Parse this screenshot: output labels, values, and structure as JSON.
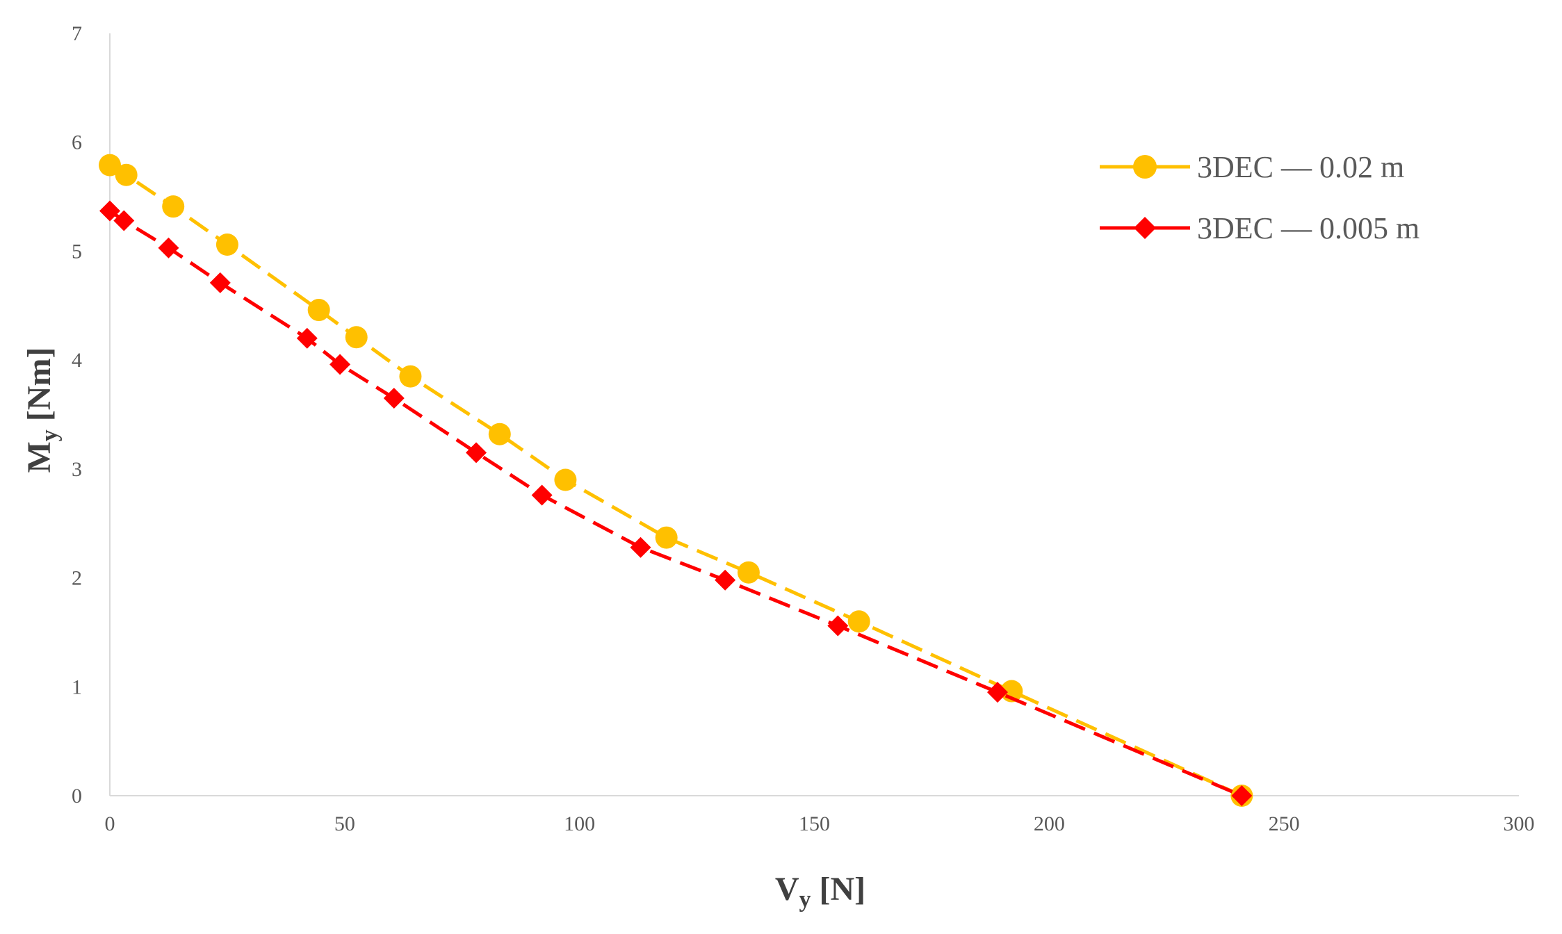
{
  "chart_data": {
    "type": "scatter",
    "xlabel": {
      "main": "V",
      "sub": "y",
      "unit": " [N]"
    },
    "ylabel": {
      "main": "M",
      "sub": "y",
      "unit": " [Nm]"
    },
    "xlim": [
      0,
      300
    ],
    "ylim": [
      0,
      7
    ],
    "x_ticks": [
      0,
      50,
      100,
      150,
      200,
      250,
      300
    ],
    "y_ticks": [
      0,
      1,
      2,
      3,
      4,
      5,
      6,
      7
    ],
    "grid": false,
    "legend_position": "top-right",
    "series": [
      {
        "name": "3DEC — 0.02 m",
        "color": "#FFC000",
        "marker": "circle",
        "line": "dashed",
        "points": [
          [
            0,
            5.79
          ],
          [
            3.5,
            5.7
          ],
          [
            13.5,
            5.41
          ],
          [
            25,
            5.06
          ],
          [
            44.5,
            4.46
          ],
          [
            52.5,
            4.21
          ],
          [
            64,
            3.85
          ],
          [
            83,
            3.32
          ],
          [
            97,
            2.9
          ],
          [
            118.5,
            2.37
          ],
          [
            136,
            2.05
          ],
          [
            159.5,
            1.6
          ],
          [
            192,
            0.96
          ],
          [
            241,
            0.0
          ]
        ]
      },
      {
        "name": "3DEC — 0.005 m",
        "color": "#FF0000",
        "marker": "diamond",
        "line": "dashed",
        "points": [
          [
            0,
            5.37
          ],
          [
            3,
            5.28
          ],
          [
            12.5,
            5.03
          ],
          [
            23.5,
            4.71
          ],
          [
            42,
            4.2
          ],
          [
            49,
            3.96
          ],
          [
            60.5,
            3.65
          ],
          [
            78,
            3.15
          ],
          [
            92,
            2.76
          ],
          [
            113,
            2.28
          ],
          [
            131,
            1.98
          ],
          [
            155,
            1.56
          ],
          [
            189,
            0.95
          ],
          [
            241,
            0.0
          ]
        ]
      }
    ]
  }
}
